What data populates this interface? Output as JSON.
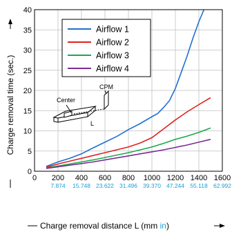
{
  "chart_data": {
    "type": "line",
    "xlabel": "Charge removal distance L (mm ",
    "xlabel_unit_alt": "in",
    "xlabel_close": ")",
    "ylabel": "Charge removal time (sec.)",
    "xlim": [
      0,
      1600
    ],
    "ylim": [
      0,
      40
    ],
    "x_ticks": [
      0,
      200,
      400,
      600,
      800,
      1000,
      1200,
      1400,
      1600
    ],
    "y_ticks": [
      0,
      5,
      10,
      15,
      20,
      25,
      30,
      35,
      40
    ],
    "x_ticks_in": [
      {
        "x": 200,
        "label": "7.874"
      },
      {
        "x": 400,
        "label": "15.748"
      },
      {
        "x": 600,
        "label": "23.622"
      },
      {
        "x": 800,
        "label": "31.496"
      },
      {
        "x": 1000,
        "label": "39.370"
      },
      {
        "x": 1200,
        "label": "47.244"
      },
      {
        "x": 1400,
        "label": "55.118"
      },
      {
        "x": 1600,
        "label": "62.992"
      }
    ],
    "grid": true,
    "legend_position": "top-right",
    "series": [
      {
        "name": "Airflow 1",
        "color": "#1f6fd0",
        "points": [
          [
            100,
            1.2
          ],
          [
            200,
            2.3
          ],
          [
            300,
            3.2
          ],
          [
            400,
            4.3
          ],
          [
            500,
            5.8
          ],
          [
            600,
            7.2
          ],
          [
            700,
            8.6
          ],
          [
            800,
            10.3
          ],
          [
            900,
            11.8
          ],
          [
            1000,
            13.5
          ],
          [
            1050,
            14.3
          ],
          [
            1100,
            15.8
          ],
          [
            1150,
            17.5
          ],
          [
            1200,
            20.5
          ],
          [
            1250,
            24.5
          ],
          [
            1300,
            28.5
          ],
          [
            1350,
            33
          ],
          [
            1400,
            37
          ],
          [
            1450,
            40.5
          ]
        ]
      },
      {
        "name": "Airflow 2",
        "color": "#e02020",
        "points": [
          [
            100,
            1.0
          ],
          [
            200,
            1.8
          ],
          [
            300,
            2.5
          ],
          [
            400,
            3.2
          ],
          [
            500,
            3.9
          ],
          [
            600,
            4.6
          ],
          [
            700,
            5.3
          ],
          [
            800,
            6.0
          ],
          [
            900,
            7.0
          ],
          [
            1000,
            8.3
          ],
          [
            1100,
            10.5
          ],
          [
            1200,
            12.7
          ],
          [
            1300,
            14.7
          ],
          [
            1400,
            16.5
          ],
          [
            1500,
            18.2
          ]
        ]
      },
      {
        "name": "Airflow 3",
        "color": "#1aa84a",
        "points": [
          [
            100,
            0.8
          ],
          [
            200,
            1.3
          ],
          [
            300,
            1.8
          ],
          [
            400,
            2.3
          ],
          [
            500,
            2.8
          ],
          [
            600,
            3.4
          ],
          [
            700,
            4.0
          ],
          [
            800,
            4.6
          ],
          [
            900,
            5.3
          ],
          [
            1000,
            6.0
          ],
          [
            1100,
            6.9
          ],
          [
            1200,
            7.9
          ],
          [
            1300,
            8.7
          ],
          [
            1400,
            9.6
          ],
          [
            1500,
            10.7
          ]
        ]
      },
      {
        "name": "Airflow 4",
        "color": "#7a2c91",
        "points": [
          [
            100,
            0.7
          ],
          [
            200,
            1.1
          ],
          [
            300,
            1.5
          ],
          [
            400,
            1.9
          ],
          [
            500,
            2.3
          ],
          [
            600,
            2.8
          ],
          [
            700,
            3.3
          ],
          [
            800,
            3.8
          ],
          [
            900,
            4.3
          ],
          [
            1000,
            4.8
          ],
          [
            1100,
            5.3
          ],
          [
            1200,
            5.9
          ],
          [
            1300,
            6.5
          ],
          [
            1400,
            7.2
          ],
          [
            1500,
            7.9
          ]
        ]
      }
    ]
  },
  "diagram": {
    "center_label": "Center",
    "cpm_label": "CPM",
    "distance_label": "L"
  }
}
